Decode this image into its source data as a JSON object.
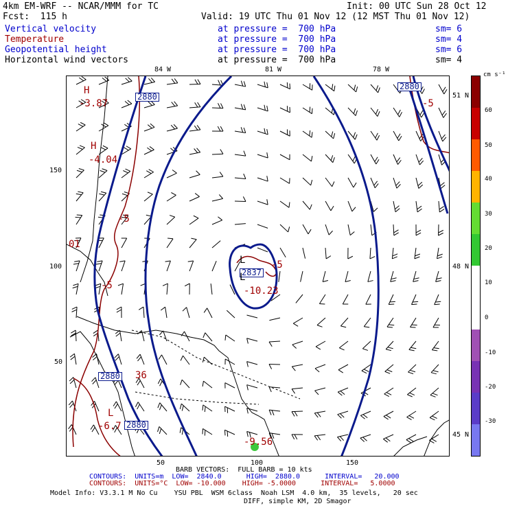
{
  "header": {
    "title": "4km EM-WRF -- NCAR/MMM for TC",
    "init": "Init: 00 UTC Sun 28 Oct 12",
    "fcst": "Fcst:  115 h",
    "valid": "Valid: 19 UTC Thu 01 Nov 12 (12 MST Thu 01 Nov 12)"
  },
  "fields": [
    {
      "name": "Vertical velocity",
      "level": "at pressure =  700 hPa",
      "sm": "sm= 6",
      "color": "#0000cc"
    },
    {
      "name": "Temperature",
      "level": "at pressure =  700 hPa",
      "sm": "sm= 4",
      "color": "#a00000"
    },
    {
      "name": "Geopotential height",
      "level": "at pressure =  700 hPa",
      "sm": "sm= 6",
      "color": "#0000cc"
    },
    {
      "name": "Horizontal wind vectors",
      "level": "at pressure =  700 hPa",
      "sm": "sm= 4",
      "color": "#000000"
    }
  ],
  "map": {
    "lon_labels": [
      "84 W",
      "81 W",
      "78 W"
    ],
    "lat_labels": [
      "51 N",
      "48 N",
      "45 N"
    ],
    "x_ticks": [
      "50",
      "100",
      "150"
    ],
    "y_ticks": [
      "150",
      "100",
      "50"
    ],
    "height_contour_labels": [
      "2880",
      "2880",
      "2837",
      "2880",
      "2880"
    ],
    "temp_labels": [
      "H",
      "-3.87",
      "H",
      "-4.04",
      "-5",
      "-5",
      "01",
      "L",
      "L",
      "-10.23",
      "-5",
      "36",
      "L",
      "-6.7",
      "-9.56",
      "-5"
    ],
    "colors": {
      "height": "#0a1a8c",
      "temp": "#8b0000",
      "coast": "#000000",
      "barb": "#000000"
    }
  },
  "colorbar": {
    "units": "cm s⁻¹",
    "labels": [
      "60",
      "50",
      "40",
      "30",
      "20",
      "10",
      "0",
      "-10",
      "-20",
      "-30"
    ],
    "colors": [
      "#8b0000",
      "#c80000",
      "#ff5a00",
      "#ffb400",
      "#64dc32",
      "#32c832",
      "#ffffff",
      "#ffffff",
      "#a050b4",
      "#7832b4",
      "#5a3cc8",
      "#7878f0"
    ]
  },
  "footer": {
    "barb": "BARB VECTORS:  FULL BARB = 10 kts",
    "contours1": "CONTOURS:  UNITS=m  LOW=  2840.0      HIGH=  2880.0      INTERVAL=   20.000",
    "contours2": "CONTOURS:  UNITS=°C  LOW= -10.000    HIGH= -5.0000      INTERVAL=   5.0000",
    "model": "Model Info: V3.3.1 M No Cu    YSU PBL  WSM 6class  Noah LSM  4.0 km,  35 levels,   20 sec",
    "diff": "DIFF, simple KM, 2D Smagor"
  }
}
